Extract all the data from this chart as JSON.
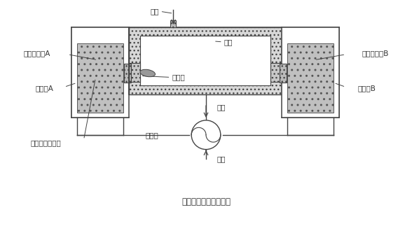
{
  "title": "蓄热式燃烧技术原理图",
  "bg_color": "#ffffff",
  "line_color": "#444444",
  "labels": {
    "fuel": "燃料",
    "burner_a": "蓄热式烧嘴A",
    "burner_b": "蓄热式烧嘴B",
    "furnace": "炉体",
    "burner_brick": "烧嘴砖",
    "regen_a": "蓄热体A",
    "regen_b": "蓄热体B",
    "flue_gas": "烟气",
    "switch_valve": "换向阀",
    "air": "空气",
    "honeycomb": "蜂窝陶瓷蓄热体"
  }
}
